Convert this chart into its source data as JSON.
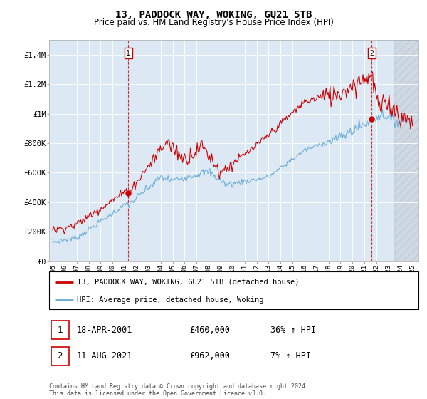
{
  "title": "13, PADDOCK WAY, WOKING, GU21 5TB",
  "subtitle": "Price paid vs. HM Land Registry's House Price Index (HPI)",
  "ylim": [
    0,
    1500000
  ],
  "yticks": [
    0,
    200000,
    400000,
    600000,
    800000,
    1000000,
    1200000,
    1400000
  ],
  "ytick_labels": [
    "£0",
    "£200K",
    "£400K",
    "£600K",
    "£800K",
    "£1M",
    "£1.2M",
    "£1.4M"
  ],
  "plot_bg": "#dce9f5",
  "hpi_color": "#6baed6",
  "sale_color": "#cc0000",
  "marker1_year": 2001.3,
  "marker1_price": 460000,
  "marker2_year": 2021.6,
  "marker2_price": 962000,
  "legend_label1": "13, PADDOCK WAY, WOKING, GU21 5TB (detached house)",
  "legend_label2": "HPI: Average price, detached house, Woking",
  "sale1_date": "18-APR-2001",
  "sale1_price": "£460,000",
  "sale1_hpi": "36% ↑ HPI",
  "sale2_date": "11-AUG-2021",
  "sale2_price": "£962,000",
  "sale2_hpi": "7% ↑ HPI",
  "footnote": "Contains HM Land Registry data © Crown copyright and database right 2024.\nThis data is licensed under the Open Government Licence v3.0."
}
